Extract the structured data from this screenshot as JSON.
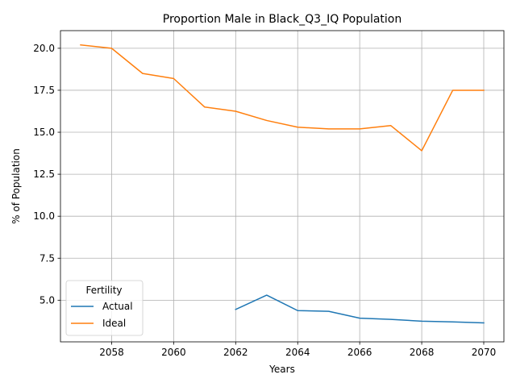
{
  "chart_data": {
    "type": "line",
    "title": "Proportion Male in Black_Q3_IQ Population",
    "xlabel": "Years",
    "ylabel": "% of Population",
    "xlim": [
      2056.35,
      2070.65
    ],
    "ylim": [
      2.52,
      21.05
    ],
    "x_ticks": [
      2058,
      2060,
      2062,
      2064,
      2066,
      2068,
      2070
    ],
    "y_ticks": [
      5.0,
      7.5,
      10.0,
      12.5,
      15.0,
      17.5,
      20.0
    ],
    "grid": true,
    "legend": {
      "title": "Fertility",
      "placement": "lower-left"
    },
    "series": [
      {
        "name": "Actual",
        "color": "#1f77b4",
        "x": [
          2062,
          2063,
          2064,
          2065,
          2066,
          2067,
          2068,
          2069,
          2070
        ],
        "y": [
          4.45,
          5.3,
          4.38,
          4.34,
          3.93,
          3.86,
          3.75,
          3.71,
          3.65
        ]
      },
      {
        "name": "Ideal",
        "color": "#ff7f0e",
        "x": [
          2057,
          2058,
          2059,
          2060,
          2061,
          2062,
          2063,
          2064,
          2065,
          2066,
          2067,
          2068,
          2069,
          2070
        ],
        "y": [
          20.2,
          20.0,
          18.5,
          18.2,
          16.5,
          16.25,
          15.7,
          15.3,
          15.2,
          15.2,
          15.4,
          13.9,
          17.5,
          17.5
        ]
      }
    ]
  }
}
